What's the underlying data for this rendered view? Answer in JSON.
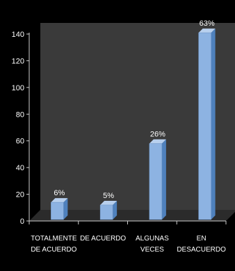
{
  "chart_data": {
    "type": "bar",
    "categories": [
      [
        "TOTALMENTE",
        "DE ACUERDO"
      ],
      [
        "DE ACUERDO"
      ],
      [
        "ALGUNAS",
        "VECES"
      ],
      [
        "EN",
        "DESACUERDO"
      ]
    ],
    "values": [
      14,
      12,
      58,
      141
    ],
    "data_labels": [
      "6%",
      "5%",
      "26%",
      "63%"
    ],
    "y_ticks": [
      "0",
      "20",
      "40",
      "60",
      "80",
      "100",
      "120",
      "140"
    ],
    "y_tick_values": [
      0,
      20,
      40,
      60,
      80,
      100,
      120,
      140
    ],
    "ylim": [
      0,
      140
    ],
    "title": "",
    "xlabel": "",
    "ylabel": "",
    "grid": false,
    "legend": "none",
    "colors": {
      "background": "#000000",
      "wall": "#3a3a3a",
      "floor": "#2b2b2b",
      "bar_front": "#8db3e2",
      "bar_side": "#4f81bd",
      "bar_top": "#b8d0ee",
      "axis": "#cfcfcf",
      "text": "#ffffff"
    }
  }
}
